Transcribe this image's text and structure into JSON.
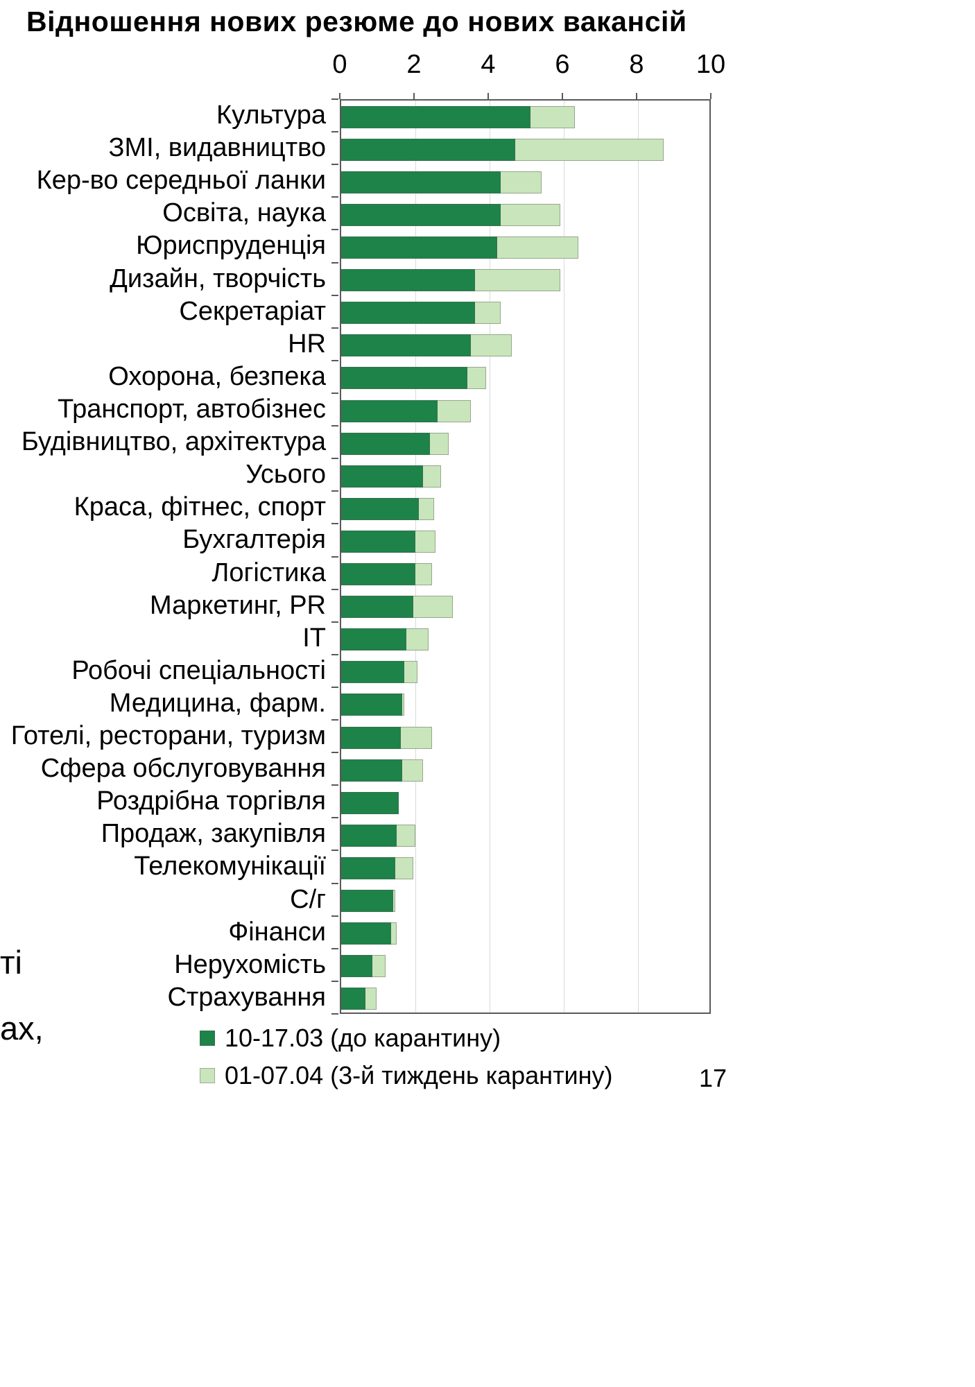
{
  "page": {
    "number": "17",
    "cut_text_line1": "ті",
    "cut_text_line2": "ах,"
  },
  "chart_data": {
    "type": "bar",
    "orientation": "horizontal",
    "title": "Відношення нових резюме до нових вакансій",
    "xlabel": "",
    "ylabel": "",
    "xlim": [
      0,
      10
    ],
    "x_ticks": [
      0,
      2,
      4,
      6,
      8,
      10
    ],
    "grid": "light vertical gridlines",
    "legend_position": "bottom",
    "categories": [
      "Культура",
      "ЗМІ, видавництво",
      "Кер-во середньої ланки",
      "Освіта, наука",
      "Юриспруденція",
      "Дизайн, творчість",
      "Секретаріат",
      "HR",
      "Охорона, безпека",
      "Транспорт, автобізнес",
      "Будівництво, архітектура",
      "Усього",
      "Краса, фітнес, спорт",
      "Бухгалтерія",
      "Логістика",
      "Маркетинг, PR",
      "IT",
      "Робочі спеціальності",
      "Медицина, фарм.",
      "Готелі, ресторани, туризм",
      "Сфера обслуговування",
      "Роздрібна торгівля",
      "Продаж, закупівля",
      "Телекомунікації",
      "С/г",
      "Фінанси",
      "Нерухомість",
      "Страхування"
    ],
    "series": [
      {
        "name": "10-17.03 (до карантину)",
        "color": "#1d8348",
        "values": [
          5.1,
          4.7,
          4.3,
          4.3,
          4.2,
          3.6,
          3.6,
          3.5,
          3.4,
          2.6,
          2.4,
          2.2,
          2.1,
          2.0,
          2.0,
          1.95,
          1.75,
          1.7,
          1.65,
          1.6,
          1.65,
          1.55,
          1.5,
          1.45,
          1.4,
          1.35,
          0.85,
          0.65
        ]
      },
      {
        "name": "01-07.04 (3-й тиждень карантину)",
        "color": "#c9e5bb",
        "values": [
          6.3,
          8.7,
          5.4,
          5.9,
          6.4,
          5.9,
          4.3,
          4.6,
          3.9,
          3.5,
          2.9,
          2.7,
          2.5,
          2.55,
          2.45,
          3.0,
          2.35,
          2.05,
          1.7,
          2.45,
          2.2,
          1.55,
          2.0,
          1.95,
          1.45,
          1.5,
          1.2,
          0.95
        ]
      }
    ]
  }
}
